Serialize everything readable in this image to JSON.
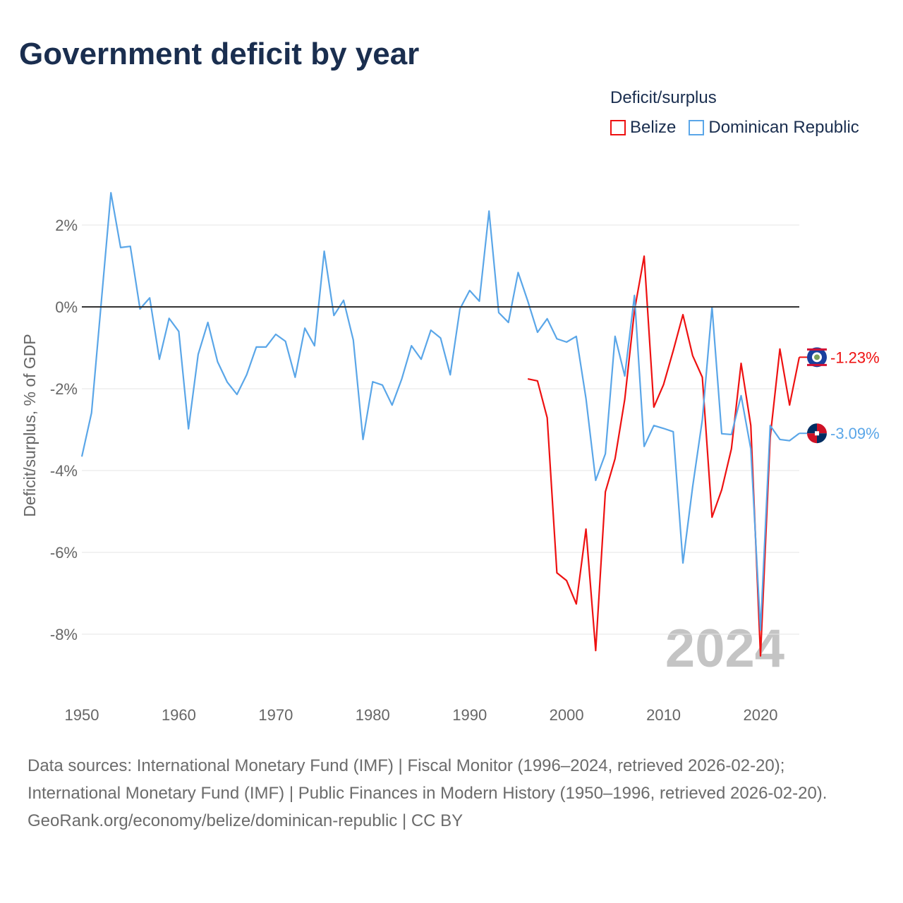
{
  "title": "Government deficit by year",
  "legend": {
    "title": "Deficit/surplus",
    "items": [
      {
        "label": "Belize",
        "color": "#ee1111"
      },
      {
        "label": "Dominican Republic",
        "color": "#5aa6e8"
      }
    ]
  },
  "footer": {
    "sources": "Data sources: International Monetary Fund (IMF) | Fiscal Monitor (1996–2024, retrieved 2026-02-20); International Monetary Fund (IMF) | Public Finances in Modern History (1950–1996, retrieved 2026-02-20).",
    "credit": "GeoRank.org/economy/belize/dominican-republic | CC BY"
  },
  "chart_data": {
    "type": "line",
    "title": "Government deficit by year",
    "ylabel": "Deficit/surplus, % of GDP",
    "xlabel": "",
    "xlim": [
      1950,
      2024
    ],
    "ylim": [
      -9.5,
      3
    ],
    "yticks": [
      2,
      0,
      -2,
      -4,
      -6,
      -8
    ],
    "ytick_labels": [
      "2%",
      "0%",
      "-2%",
      "-4%",
      "-6%",
      "-8%"
    ],
    "xticks": [
      1950,
      1960,
      1970,
      1980,
      1990,
      2000,
      2010,
      2020
    ],
    "year_watermark": "2024",
    "series": [
      {
        "name": "Belize",
        "color": "#ee1111",
        "end_label": "-1.23%",
        "start_year": 1996,
        "values": [
          -1.76,
          -1.81,
          -2.71,
          -6.5,
          -6.69,
          -7.26,
          -5.43,
          -8.4,
          -4.52,
          -3.71,
          -2.26,
          -0.09,
          1.24,
          -2.45,
          -1.9,
          -1.07,
          -0.19,
          -1.19,
          -1.72,
          -5.14,
          -4.47,
          -3.47,
          -1.38,
          -2.9,
          -8.53,
          -3.19,
          -1.03,
          -2.4,
          -1.23
        ]
      },
      {
        "name": "Dominican Republic",
        "color": "#5aa6e8",
        "end_label": "-3.09%",
        "start_year": 1950,
        "values": [
          -3.66,
          -2.59,
          0.1,
          2.79,
          1.45,
          1.48,
          -0.05,
          0.22,
          -1.28,
          -0.28,
          -0.6,
          -2.98,
          -1.16,
          -0.38,
          -1.34,
          -1.84,
          -2.14,
          -1.66,
          -0.98,
          -0.98,
          -0.67,
          -0.84,
          -1.72,
          -0.52,
          -0.95,
          1.36,
          -0.21,
          0.16,
          -0.81,
          -3.24,
          -1.83,
          -1.91,
          -2.4,
          -1.76,
          -0.95,
          -1.28,
          -0.57,
          -0.76,
          -1.66,
          -0.05,
          0.4,
          0.14,
          2.34,
          -0.14,
          -0.38,
          0.84,
          0.14,
          -0.62,
          -0.29,
          -0.78,
          -0.86,
          -0.72,
          -2.24,
          -4.24,
          -3.59,
          -0.72,
          -1.69,
          0.28,
          -3.41,
          -2.9,
          -2.97,
          -3.05,
          -6.26,
          -4.4,
          -2.76,
          0.0,
          -3.1,
          -3.12,
          -2.17,
          -3.47,
          -7.9,
          -2.9,
          -3.24,
          -3.27,
          -3.09
        ]
      }
    ]
  }
}
